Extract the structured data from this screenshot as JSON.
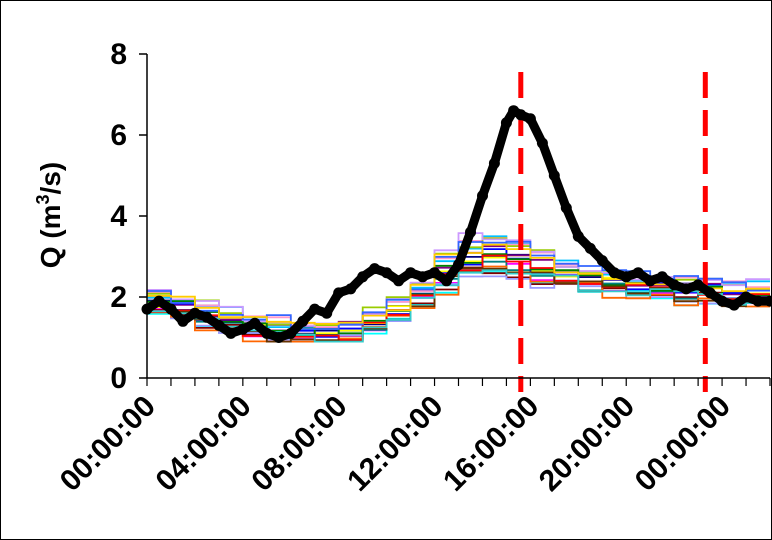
{
  "chart_data": {
    "type": "line",
    "ylabel_main": "Q (m",
    "ylabel_sup": "3",
    "ylabel_tail": "/s)",
    "xlabel": "",
    "ylim": [
      0,
      8
    ],
    "y_ticks": [
      "0",
      "2",
      "4",
      "6",
      "8"
    ],
    "x_range_hours": [
      0,
      26
    ],
    "x_tick_labels": [
      "00:00:00",
      "04:00:00",
      "08:00:00",
      "12:00:00",
      "16:00:00",
      "20:00:00",
      "00:00:00"
    ],
    "x_tick_hours": [
      0,
      4,
      8,
      12,
      16,
      20,
      24
    ],
    "event_markers_hours": [
      15.6,
      23.3
    ],
    "observed": {
      "color": "#000000",
      "hours": [
        0,
        0.5,
        1,
        1.5,
        2,
        2.5,
        3,
        3.5,
        4,
        4.5,
        5,
        5.5,
        6,
        6.5,
        7,
        7.5,
        8,
        8.5,
        9,
        9.5,
        10,
        10.5,
        11,
        11.5,
        12,
        12.5,
        13,
        13.5,
        14,
        14.5,
        15,
        15.3,
        15.6,
        16,
        16.5,
        17,
        17.5,
        18,
        18.5,
        19,
        19.5,
        20,
        20.5,
        21,
        21.5,
        22,
        22.5,
        23,
        23.5,
        24,
        24.5,
        25,
        25.5,
        26
      ],
      "values": [
        1.7,
        1.9,
        1.7,
        1.4,
        1.6,
        1.5,
        1.3,
        1.1,
        1.2,
        1.35,
        1.1,
        1.0,
        1.1,
        1.4,
        1.7,
        1.6,
        2.1,
        2.2,
        2.5,
        2.7,
        2.6,
        2.4,
        2.6,
        2.5,
        2.6,
        2.4,
        2.8,
        3.6,
        4.5,
        5.3,
        6.3,
        6.6,
        6.5,
        6.4,
        5.8,
        5.0,
        4.2,
        3.5,
        3.2,
        2.9,
        2.6,
        2.5,
        2.6,
        2.4,
        2.5,
        2.3,
        2.2,
        2.3,
        2.1,
        1.9,
        1.8,
        2.0,
        1.9,
        1.9
      ]
    },
    "ensemble_colors": [
      "#000080",
      "#ff00ff",
      "#ffff00",
      "#00ffff",
      "#800080",
      "#800000",
      "#008080",
      "#0000ff",
      "#00c0ff",
      "#9999ff",
      "#ff99cc",
      "#99cc00",
      "#ff6600",
      "#cc99ff",
      "#008000",
      "#ff0000",
      "#663300",
      "#3366ff",
      "#33cccc",
      "#ffcc00"
    ],
    "ensemble_hours": [
      0,
      1,
      2,
      3,
      4,
      5,
      6,
      7,
      8,
      9,
      10,
      11,
      12,
      13,
      14,
      15,
      16,
      17,
      18,
      19,
      20,
      21,
      22,
      23,
      24,
      25,
      26
    ],
    "ensemble_base": [
      1.9,
      1.8,
      1.6,
      1.45,
      1.3,
      1.2,
      1.15,
      1.15,
      1.2,
      1.4,
      1.7,
      2.1,
      2.7,
      3.0,
      3.1,
      3.0,
      2.8,
      2.6,
      2.5,
      2.4,
      2.3,
      2.3,
      2.2,
      2.2,
      2.1,
      2.1,
      2.0
    ]
  }
}
